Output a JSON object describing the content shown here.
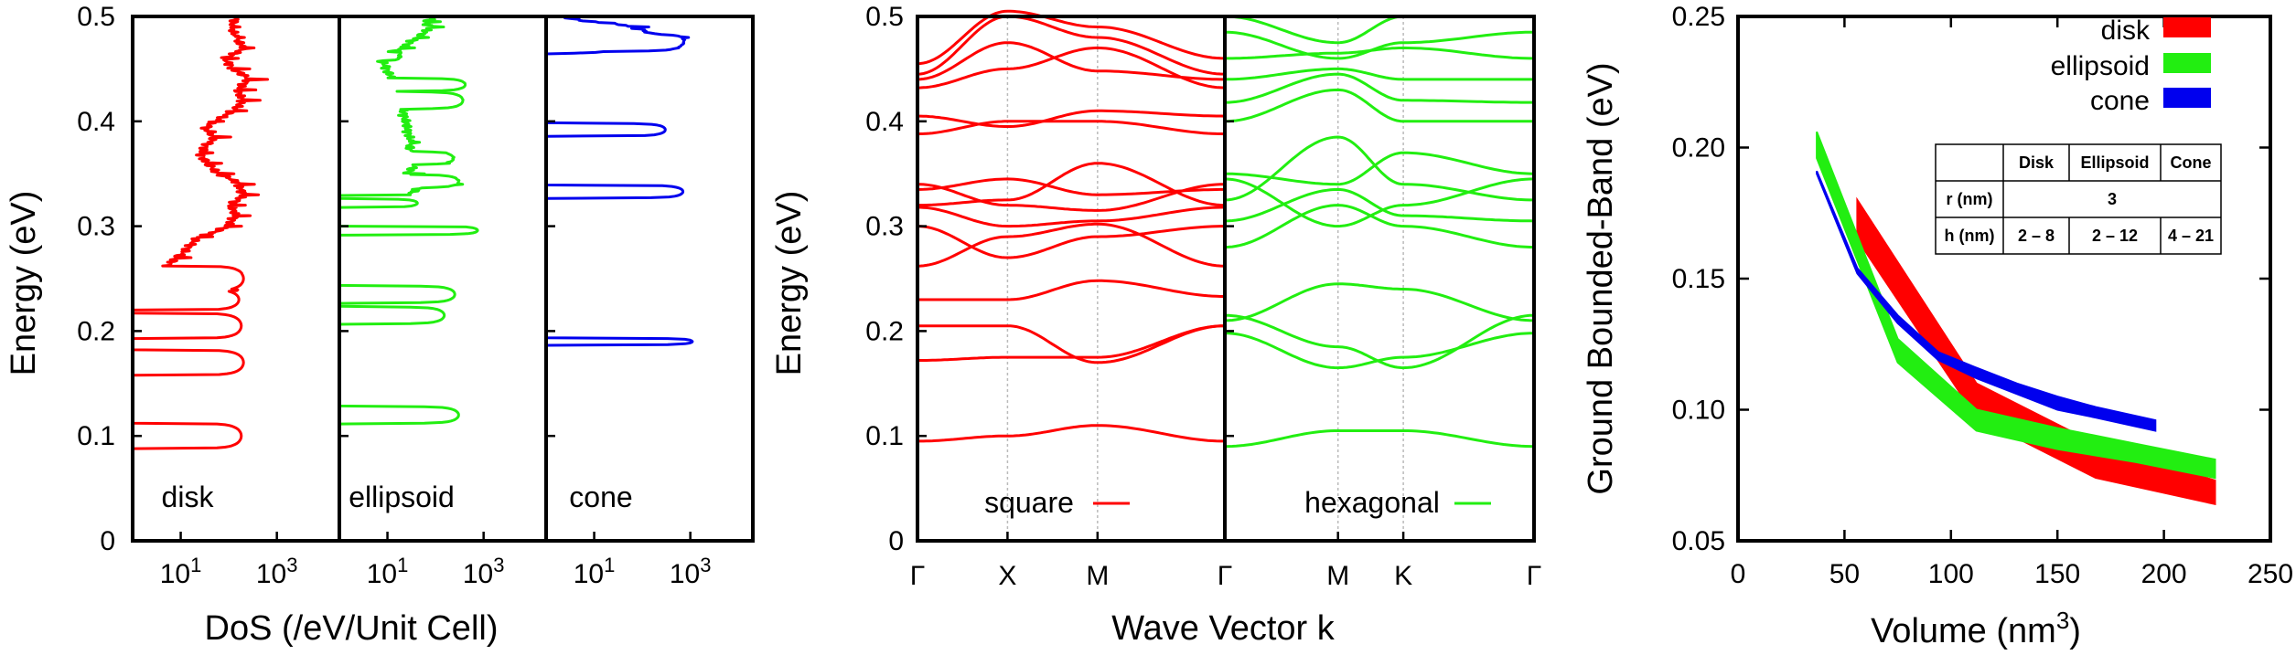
{
  "colors": {
    "disk": "#ff0000",
    "ellipsoid": "#22ee11",
    "cone": "#0000ee",
    "square": "#ff0000",
    "hexagonal": "#22ee11"
  },
  "chart_data": [
    {
      "type": "line",
      "name": "dos",
      "ylabel": "Energy (eV)",
      "xlabel": "DoS (/eV/Unit Cell)",
      "ylim": [
        0,
        0.5
      ],
      "yticks": [
        "0",
        "0.1",
        "0.2",
        "0.3",
        "0.4",
        "0.5"
      ],
      "xscale": "log",
      "xticks": [
        {
          "base": "10",
          "exp": "1"
        },
        {
          "base": "10",
          "exp": "3"
        }
      ],
      "panels": [
        {
          "label": "disk",
          "color": "#ff0000",
          "peaks": [
            {
              "e": 0.1,
              "w": 0.012,
              "d": 180
            },
            {
              "e": 0.17,
              "w": 0.012,
              "d": 200
            },
            {
              "e": 0.205,
              "w": 0.012,
              "d": 180
            },
            {
              "e": 0.23,
              "w": 0.01,
              "d": 160
            },
            {
              "e": 0.25,
              "w": 0.012,
              "d": 200
            },
            {
              "e": 0.385,
              "w": 0.006,
              "d": 3
            }
          ],
          "continuum": [
            [
              0.255,
              3
            ],
            [
              0.27,
              8
            ],
            [
              0.29,
              22
            ],
            [
              0.3,
              90
            ],
            [
              0.31,
              140
            ],
            [
              0.32,
              110
            ],
            [
              0.33,
              200
            ],
            [
              0.34,
              160
            ],
            [
              0.35,
              60
            ],
            [
              0.36,
              35
            ],
            [
              0.37,
              25
            ],
            [
              0.385,
              45
            ],
            [
              0.39,
              30
            ],
            [
              0.4,
              45
            ],
            [
              0.41,
              120
            ],
            [
              0.42,
              200
            ],
            [
              0.43,
              150
            ],
            [
              0.44,
              260
            ],
            [
              0.45,
              120
            ],
            [
              0.46,
              80
            ],
            [
              0.47,
              200
            ],
            [
              0.48,
              140
            ],
            [
              0.49,
              110
            ],
            [
              0.5,
              150
            ]
          ]
        },
        {
          "label": "ellipsoid",
          "color": "#22ee11",
          "peaks": [
            {
              "e": 0.12,
              "w": 0.008,
              "d": 300
            },
            {
              "e": 0.215,
              "w": 0.008,
              "d": 150
            },
            {
              "e": 0.235,
              "w": 0.008,
              "d": 250
            },
            {
              "e": 0.296,
              "w": 0.004,
              "d": 750
            },
            {
              "e": 0.322,
              "w": 0.004,
              "d": 40
            },
            {
              "e": 0.343,
              "w": 0.006,
              "d": 250
            },
            {
              "e": 0.365,
              "w": 0.006,
              "d": 200
            },
            {
              "e": 0.42,
              "w": 0.008,
              "d": 350
            },
            {
              "e": 0.435,
              "w": 0.006,
              "d": 400
            },
            {
              "e": 0.462,
              "w": 0.004,
              "d": 10
            }
          ],
          "continuum": [
            [
              0.33,
              25
            ],
            [
              0.34,
              60
            ],
            [
              0.35,
              25
            ],
            [
              0.36,
              40
            ],
            [
              0.37,
              30
            ],
            [
              0.38,
              30
            ],
            [
              0.463,
              6
            ],
            [
              0.47,
              20
            ],
            [
              0.48,
              40
            ],
            [
              0.49,
              80
            ],
            [
              0.495,
              60
            ],
            [
              0.5,
              100
            ]
          ]
        },
        {
          "label": "cone",
          "color": "#0000ee",
          "peaks": [
            {
              "e": 0.19,
              "w": 0.003,
              "d": 1100
            },
            {
              "e": 0.333,
              "w": 0.006,
              "d": 700
            },
            {
              "e": 0.392,
              "w": 0.006,
              "d": 300
            },
            {
              "e": 0.475,
              "w": 0.008,
              "d": 600
            }
          ],
          "continuum": [
            [
              0.465,
              4
            ],
            [
              0.47,
              50
            ],
            [
              0.48,
              200
            ],
            [
              0.49,
              60
            ],
            [
              0.495,
              6
            ],
            [
              0.5,
              2
            ]
          ]
        }
      ]
    },
    {
      "type": "line",
      "name": "band-structure",
      "ylabel": "Energy (eV)",
      "xlabel": "Wave Vector k",
      "ylim": [
        0,
        0.5
      ],
      "yticks": [
        "0",
        "0.1",
        "0.2",
        "0.3",
        "0.4",
        "0.5"
      ],
      "panels": [
        {
          "label": "square",
          "color": "#ff0000",
          "kpoints": [
            "Γ",
            "X",
            "M",
            "Γ"
          ],
          "kpos": [
            0,
            1,
            2,
            3.414
          ],
          "bands": [
            [
              0.095,
              0.1,
              0.11,
              0.095
            ],
            [
              0.205,
              0.205,
              0.17,
              0.205
            ],
            [
              0.172,
              0.175,
              0.175,
              0.205
            ],
            [
              0.23,
              0.23,
              0.248,
              0.233
            ],
            [
              0.262,
              0.29,
              0.302,
              0.262
            ],
            [
              0.3,
              0.27,
              0.29,
              0.3
            ],
            [
              0.318,
              0.3,
              0.305,
              0.318
            ],
            [
              0.32,
              0.325,
              0.36,
              0.32
            ],
            [
              0.335,
              0.345,
              0.33,
              0.335
            ],
            [
              0.34,
              0.32,
              0.315,
              0.34
            ],
            [
              0.388,
              0.4,
              0.4,
              0.388
            ],
            [
              0.405,
              0.395,
              0.41,
              0.405
            ],
            [
              0.432,
              0.45,
              0.47,
              0.432
            ],
            [
              0.44,
              0.475,
              0.448,
              0.44
            ],
            [
              0.445,
              0.5,
              0.48,
              0.445
            ],
            [
              0.455,
              0.505,
              0.49,
              0.46
            ]
          ]
        },
        {
          "label": "hexagonal",
          "color": "#22ee11",
          "kpoints": [
            "Γ",
            "M",
            "K",
            "Γ"
          ],
          "kpos": [
            0,
            1,
            1.577,
            2.732
          ],
          "bands": [
            [
              0.09,
              0.105,
              0.105,
              0.09
            ],
            [
              0.198,
              0.165,
              0.175,
              0.198
            ],
            [
              0.215,
              0.185,
              0.165,
              0.215
            ],
            [
              0.21,
              0.245,
              0.24,
              0.21
            ],
            [
              0.28,
              0.32,
              0.3,
              0.28
            ],
            [
              0.305,
              0.335,
              0.31,
              0.305
            ],
            [
              0.325,
              0.385,
              0.34,
              0.325
            ],
            [
              0.345,
              0.3,
              0.32,
              0.345
            ],
            [
              0.35,
              0.34,
              0.37,
              0.35
            ],
            [
              0.4,
              0.43,
              0.4,
              0.4
            ],
            [
              0.418,
              0.445,
              0.42,
              0.418
            ],
            [
              0.44,
              0.45,
              0.44,
              0.44
            ],
            [
              0.46,
              0.465,
              0.47,
              0.46
            ],
            [
              0.485,
              0.46,
              0.475,
              0.485
            ],
            [
              0.5,
              0.475,
              0.5,
              0.5
            ]
          ]
        }
      ]
    },
    {
      "type": "area",
      "name": "ground-band-vs-volume",
      "ylabel": "Ground Bounded-Band (eV)",
      "xlabel": "Volume (nm³)",
      "xlabel_base": "Volume (nm",
      "xlabel_sup": "3",
      "xlabel_end": ")",
      "xlim": [
        0,
        250
      ],
      "ylim": [
        0.05,
        0.25
      ],
      "xticks": [
        "0",
        "50",
        "100",
        "150",
        "200",
        "250"
      ],
      "yticks": [
        "0.05",
        "0.10",
        "0.15",
        "0.20",
        "0.25"
      ],
      "legend_position": "top-right",
      "series": [
        {
          "name": "disk",
          "color": "#ff0000",
          "x": [
            56,
            112,
            168,
            224
          ],
          "upper": [
            0.18,
            0.11,
            0.087,
            0.073
          ],
          "lower": [
            0.165,
            0.097,
            0.074,
            0.064
          ]
        },
        {
          "name": "ellipsoid",
          "color": "#22ee11",
          "x": [
            37,
            75,
            112,
            150,
            187,
            224
          ],
          "upper": [
            0.206,
            0.127,
            0.1,
            0.093,
            0.087,
            0.081
          ],
          "lower": [
            0.196,
            0.118,
            0.092,
            0.085,
            0.08,
            0.074
          ]
        },
        {
          "name": "cone",
          "color": "#0000ee",
          "x": [
            37,
            56,
            75,
            94,
            112,
            131,
            150,
            168,
            196
          ],
          "upper": [
            0.191,
            0.154,
            0.136,
            0.122,
            0.116,
            0.11,
            0.105,
            0.101,
            0.096
          ],
          "lower": [
            0.19,
            0.152,
            0.133,
            0.119,
            0.112,
            0.106,
            0.1,
            0.097,
            0.092
          ]
        }
      ],
      "table": {
        "header": [
          "",
          "Disk",
          "Ellipsoid",
          "Cone"
        ],
        "rows": [
          {
            "label": "r (nm)",
            "merged": "3"
          },
          {
            "label": "h (nm)",
            "cells": [
              "2 – 8",
              "2 – 12",
              "4 – 21"
            ]
          }
        ]
      }
    }
  ]
}
